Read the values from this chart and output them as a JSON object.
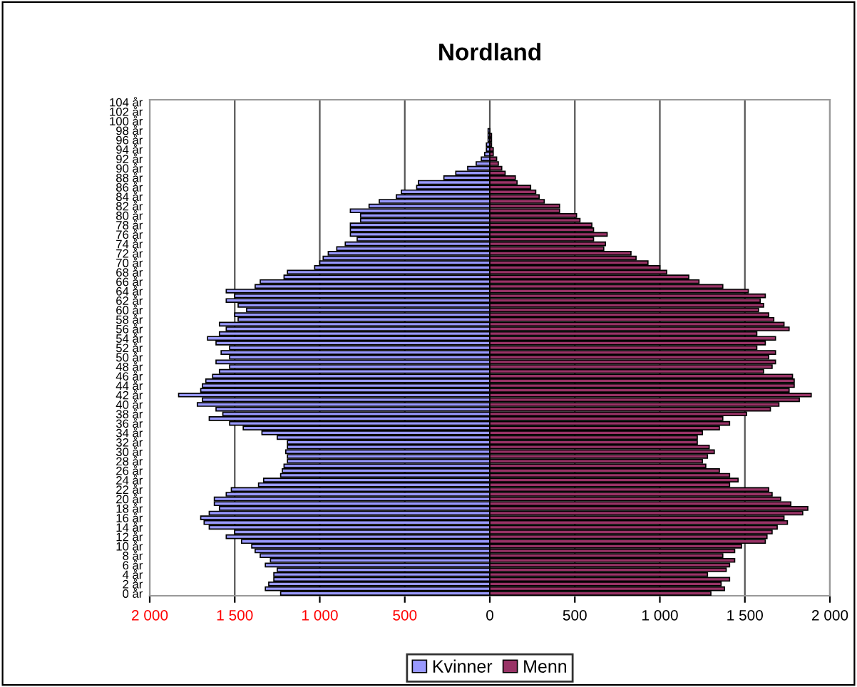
{
  "chart_data": {
    "type": "bar",
    "orientation": "horizontal",
    "title": "Nordland",
    "categories": [
      "104 år",
      null,
      "102 år",
      null,
      "100 år",
      null,
      "98 år",
      null,
      "96 år",
      null,
      "94 år",
      null,
      "92 år",
      null,
      "90 år",
      null,
      "88 år",
      null,
      "86 år",
      null,
      "84 år",
      null,
      "82 år",
      null,
      "80 år",
      null,
      "78 år",
      null,
      "76 år",
      null,
      "74 år",
      null,
      "72 år",
      null,
      "70 år",
      null,
      "68 år",
      null,
      "66 år",
      null,
      "64 år",
      null,
      "62 år",
      null,
      "60 år",
      null,
      "58 år",
      null,
      "56 år",
      null,
      "54 år",
      null,
      "52 år",
      null,
      "50 år",
      null,
      "48 år",
      null,
      "46 år",
      null,
      "44 år",
      null,
      "42 år",
      null,
      "40 år",
      null,
      "38 år",
      null,
      "36 år",
      null,
      "34 år",
      null,
      "32 år",
      null,
      "30 år",
      null,
      "28 år",
      null,
      "26 år",
      null,
      "24 år",
      null,
      "22 år",
      null,
      "20 år",
      null,
      "18 år",
      null,
      "16 år",
      null,
      "14 år",
      null,
      "12 år",
      null,
      "10 år",
      null,
      "8 år",
      null,
      "6 år",
      null,
      "4 år",
      null,
      "2 år",
      null,
      "0 år"
    ],
    "series": [
      {
        "name": "Kvinner",
        "color": "#9999ff",
        "values": [
          0,
          0,
          0,
          0,
          0,
          0,
          -10,
          -10,
          -10,
          -20,
          -20,
          -30,
          -50,
          -80,
          -130,
          -200,
          -270,
          -420,
          -430,
          -520,
          -550,
          -650,
          -710,
          -820,
          -760,
          -760,
          -820,
          -820,
          -820,
          -780,
          -850,
          -900,
          -950,
          -980,
          -1000,
          -1030,
          -1190,
          -1210,
          -1350,
          -1380,
          -1550,
          -1500,
          -1550,
          -1480,
          -1430,
          -1500,
          -1480,
          -1590,
          -1550,
          -1590,
          -1660,
          -1610,
          -1530,
          -1580,
          -1530,
          -1610,
          -1530,
          -1590,
          -1630,
          -1670,
          -1690,
          -1700,
          -1830,
          -1690,
          -1720,
          -1610,
          -1570,
          -1650,
          -1530,
          -1450,
          -1340,
          -1250,
          -1190,
          -1190,
          -1200,
          -1190,
          -1190,
          -1210,
          -1220,
          -1230,
          -1330,
          -1360,
          -1520,
          -1550,
          -1620,
          -1620,
          -1590,
          -1650,
          -1700,
          -1680,
          -1650,
          -1500,
          -1550,
          -1460,
          -1400,
          -1380,
          -1350,
          -1290,
          -1320,
          -1250,
          -1270,
          -1270,
          -1300,
          -1320,
          -1230
        ]
      },
      {
        "name": "Menn",
        "color": "#993366",
        "values": [
          0,
          0,
          0,
          0,
          0,
          0,
          0,
          10,
          10,
          10,
          20,
          20,
          40,
          50,
          70,
          90,
          150,
          160,
          240,
          270,
          290,
          320,
          410,
          410,
          510,
          530,
          600,
          610,
          690,
          610,
          680,
          670,
          830,
          860,
          930,
          1000,
          1040,
          1170,
          1230,
          1370,
          1520,
          1620,
          1590,
          1610,
          1580,
          1640,
          1670,
          1730,
          1760,
          1570,
          1680,
          1620,
          1570,
          1680,
          1640,
          1680,
          1660,
          1610,
          1780,
          1790,
          1790,
          1760,
          1890,
          1820,
          1700,
          1650,
          1510,
          1370,
          1410,
          1350,
          1250,
          1220,
          1220,
          1290,
          1320,
          1280,
          1250,
          1270,
          1350,
          1410,
          1460,
          1410,
          1640,
          1660,
          1710,
          1770,
          1870,
          1840,
          1730,
          1750,
          1690,
          1660,
          1630,
          1620,
          1480,
          1440,
          1370,
          1440,
          1410,
          1390,
          1280,
          1410,
          1360,
          1380,
          1300
        ]
      }
    ],
    "xlim": [
      -2000,
      2000
    ],
    "xticks": [
      {
        "value": -2000,
        "label": "2 000"
      },
      {
        "value": -1500,
        "label": "1 500"
      },
      {
        "value": -1000,
        "label": "1 000"
      },
      {
        "value": -500,
        "label": "500"
      },
      0,
      500,
      {
        "value": 1000,
        "label": "1 000"
      },
      {
        "value": 1500,
        "label": "1 500"
      },
      {
        "value": 2000,
        "label": "2 000"
      }
    ],
    "grid": "x",
    "legend": "bottom",
    "stacked": true
  }
}
